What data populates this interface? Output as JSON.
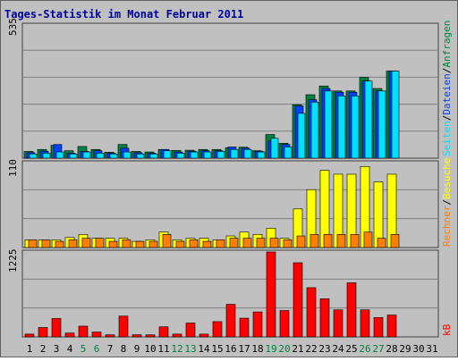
{
  "title": "Tages-Statistik im Monat Februar 2011",
  "colors": {
    "background": "#C0C0C0",
    "title": "#0000A0",
    "anfragen": "#008040",
    "dateien": "#0040FF",
    "seiten": "#00E0FF",
    "besuche": "#FFFF00",
    "rechner": "#FF8000",
    "kb": "#FF0000",
    "weekend": "#008040",
    "grid": "#808080"
  },
  "right_labels": {
    "top": [
      "Anfragen",
      "Dateien",
      "Seiten"
    ],
    "middle": [
      "Besuche",
      "Rechner"
    ],
    "bottom": [
      "kB"
    ],
    "separator": "/"
  },
  "chart_data": [
    {
      "type": "bar",
      "title": "Tages-Statistik im Monat Februar 2011",
      "ymax_label": "535",
      "ylim": [
        0,
        535
      ],
      "categories": [
        "1",
        "2",
        "3",
        "4",
        "5",
        "6",
        "7",
        "8",
        "9",
        "10",
        "11",
        "12",
        "13",
        "14",
        "15",
        "16",
        "17",
        "18",
        "19",
        "20",
        "21",
        "22",
        "23",
        "24",
        "25",
        "26",
        "27",
        "28",
        "29",
        "30",
        "31"
      ],
      "weekend_days": [
        "5",
        "6",
        "12",
        "13",
        "19",
        "20",
        "26",
        "27"
      ],
      "series": [
        {
          "name": "Anfragen",
          "values": [
            27,
            35,
            52,
            30,
            47,
            35,
            24,
            55,
            27,
            25,
            35,
            31,
            32,
            35,
            35,
            42,
            44,
            30,
            95,
            60,
            215,
            255,
            290,
            270,
            270,
            325,
            280,
            350,
            0,
            0,
            0
          ]
        },
        {
          "name": "Dateien",
          "values": [
            22,
            28,
            55,
            20,
            27,
            30,
            20,
            40,
            22,
            20,
            35,
            25,
            28,
            30,
            30,
            45,
            40,
            28,
            70,
            55,
            210,
            235,
            280,
            265,
            265,
            310,
            270,
            350,
            0,
            0,
            0
          ]
        },
        {
          "name": "Seiten",
          "values": [
            17,
            20,
            25,
            17,
            25,
            20,
            17,
            25,
            17,
            17,
            30,
            20,
            25,
            25,
            27,
            35,
            35,
            25,
            80,
            45,
            180,
            225,
            270,
            250,
            250,
            310,
            270,
            350,
            0,
            0,
            0
          ]
        }
      ]
    },
    {
      "type": "bar",
      "ymax_label": "110",
      "ylim": [
        0,
        110
      ],
      "categories": [
        "1",
        "2",
        "3",
        "4",
        "5",
        "6",
        "7",
        "8",
        "9",
        "10",
        "11",
        "12",
        "13",
        "14",
        "15",
        "16",
        "17",
        "18",
        "19",
        "20",
        "21",
        "22",
        "23",
        "24",
        "25",
        "26",
        "27",
        "28",
        "29",
        "30",
        "31"
      ],
      "series": [
        {
          "name": "Besuche",
          "values": [
            10,
            10,
            10,
            13,
            17,
            12,
            12,
            12,
            8,
            10,
            20,
            10,
            12,
            12,
            10,
            15,
            20,
            17,
            25,
            12,
            50,
            75,
            100,
            95,
            95,
            105,
            85,
            95,
            0,
            0,
            0
          ]
        },
        {
          "name": "Rechner",
          "values": [
            10,
            10,
            8,
            10,
            12,
            12,
            8,
            10,
            8,
            8,
            17,
            8,
            10,
            8,
            10,
            12,
            12,
            12,
            12,
            10,
            15,
            17,
            17,
            17,
            17,
            20,
            12,
            17,
            0,
            0,
            0
          ]
        }
      ]
    },
    {
      "type": "bar",
      "ymax_label": "1225",
      "ylim": [
        0,
        1225
      ],
      "categories": [
        "1",
        "2",
        "3",
        "4",
        "5",
        "6",
        "7",
        "8",
        "9",
        "10",
        "11",
        "12",
        "13",
        "14",
        "15",
        "16",
        "17",
        "18",
        "19",
        "20",
        "21",
        "22",
        "23",
        "24",
        "25",
        "26",
        "27",
        "28",
        "29",
        "30",
        "31"
      ],
      "series": [
        {
          "name": "kB",
          "values": [
            40,
            135,
            265,
            55,
            155,
            70,
            30,
            300,
            30,
            30,
            145,
            40,
            200,
            40,
            220,
            470,
            270,
            360,
            1225,
            380,
            1070,
            710,
            550,
            390,
            780,
            390,
            280,
            315,
            0,
            0,
            0
          ]
        }
      ]
    }
  ]
}
